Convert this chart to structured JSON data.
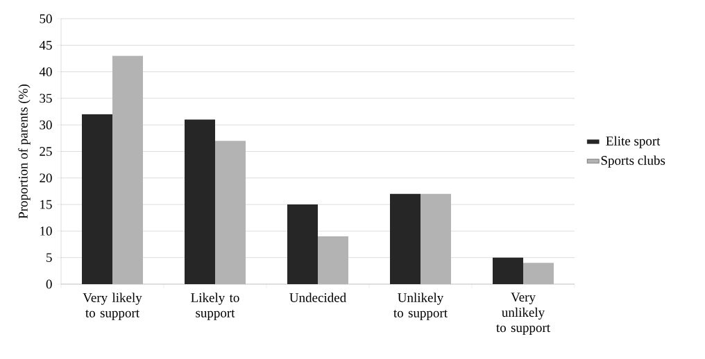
{
  "chart_data": {
    "type": "bar",
    "ylabel": "Proportion of parents (%)",
    "categories": [
      "Very likely to support",
      "Likely to support",
      "Undecided",
      "Unlikely to support",
      "Very unlikely to support"
    ],
    "series": [
      {
        "name": "Elite sport",
        "color": "#262626",
        "values": [
          32,
          31,
          15,
          17,
          5
        ]
      },
      {
        "name": "Sports clubs",
        "color": "#b3b3b3",
        "values": [
          43,
          27,
          9,
          17,
          4
        ]
      }
    ],
    "ylim": [
      0,
      50
    ],
    "yticks": [
      0,
      5,
      10,
      15,
      20,
      25,
      30,
      35,
      40,
      45,
      50
    ],
    "grid": "y",
    "legend": "right"
  }
}
